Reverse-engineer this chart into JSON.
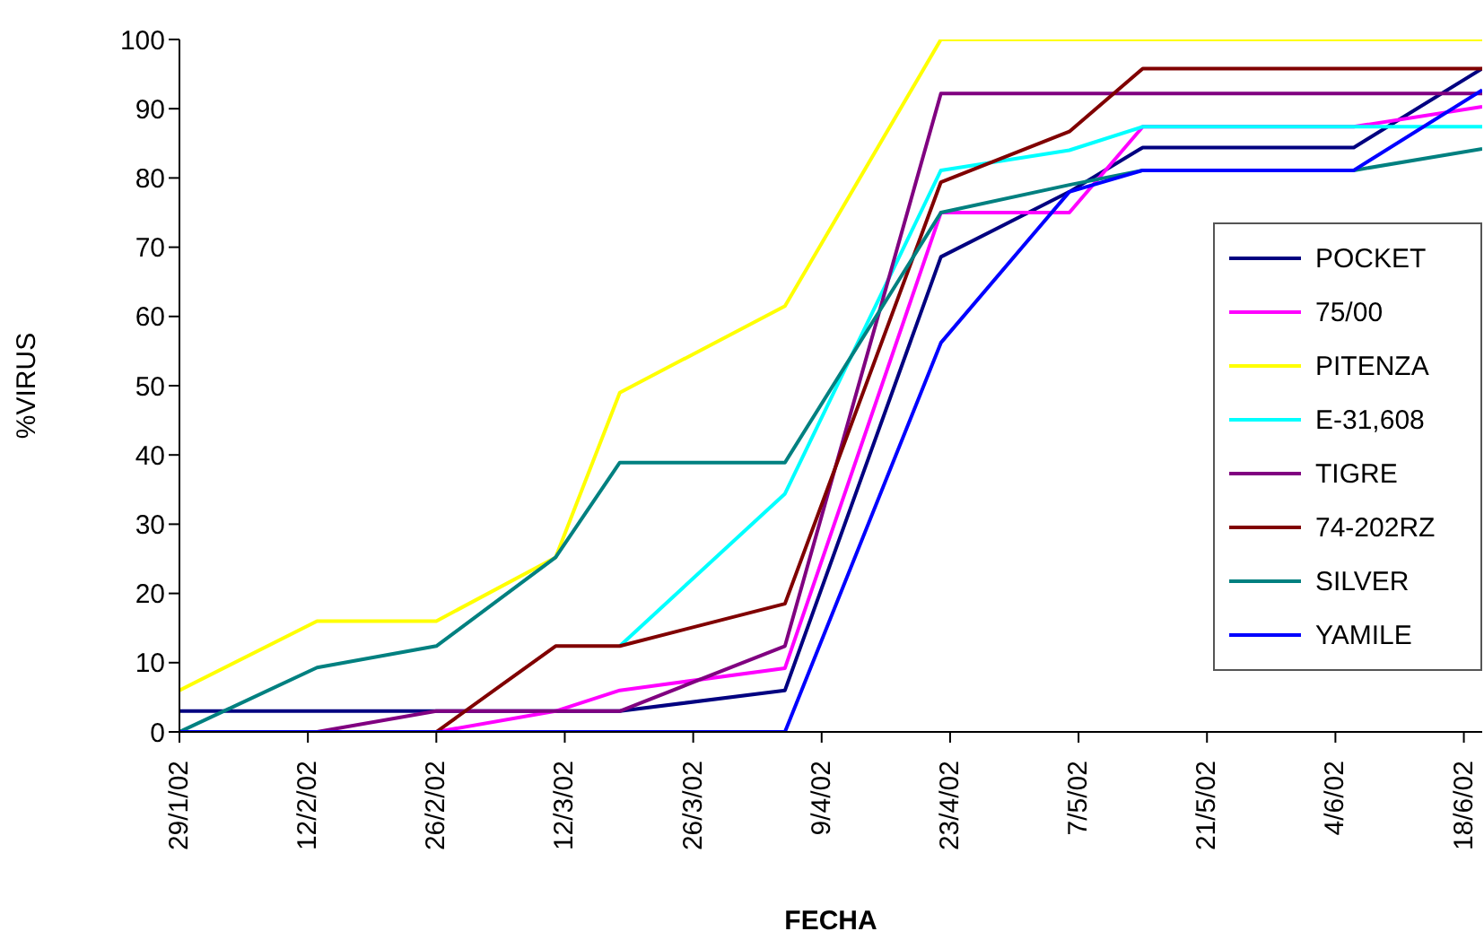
{
  "chart_data": {
    "type": "line",
    "xlabel": "FECHA",
    "ylabel": "%VIRUS",
    "x": [
      "2002-01-29",
      "2002-02-13",
      "2002-02-26",
      "2002-03-11",
      "2002-03-18",
      "2002-04-05",
      "2002-04-22",
      "2002-05-06",
      "2002-05-14",
      "2002-06-06",
      "2002-06-20"
    ],
    "xlim": [
      "2002-01-29",
      "2002-06-20"
    ],
    "xticks": [
      {
        "value": "2002-01-29",
        "label": "29/1/02"
      },
      {
        "value": "2002-02-12",
        "label": "12/2/02"
      },
      {
        "value": "2002-02-26",
        "label": "26/2/02"
      },
      {
        "value": "2002-03-12",
        "label": "12/3/02"
      },
      {
        "value": "2002-03-26",
        "label": "26/3/02"
      },
      {
        "value": "2002-04-09",
        "label": "9/4/02"
      },
      {
        "value": "2002-04-23",
        "label": "23/4/02"
      },
      {
        "value": "2002-05-07",
        "label": "7/5/02"
      },
      {
        "value": "2002-05-21",
        "label": "21/5/02"
      },
      {
        "value": "2002-06-04",
        "label": "4/6/02"
      },
      {
        "value": "2002-06-18",
        "label": "18/6/02"
      }
    ],
    "ylim": [
      0,
      100
    ],
    "yticks": [
      0,
      10,
      20,
      30,
      40,
      50,
      60,
      70,
      80,
      90,
      100
    ],
    "grid": false,
    "legend": "right",
    "marker": "none",
    "line_style": "solid",
    "series": [
      {
        "name": "POCKET",
        "color": "#000080",
        "values": [
          3,
          3,
          3,
          3,
          3,
          6,
          68.6,
          78,
          84.4,
          84.4,
          95.8
        ]
      },
      {
        "name": "75/00",
        "color": "#ff00ff",
        "values": [
          0,
          0,
          0,
          3,
          6,
          9.2,
          75,
          75,
          87.4,
          87.4,
          90.3
        ]
      },
      {
        "name": "PITENZA",
        "color": "#ffff00",
        "values": [
          6,
          16,
          16,
          25.2,
          49,
          61.5,
          100,
          100,
          100,
          100,
          100
        ]
      },
      {
        "name": "E-31,608",
        "color": "#00ffff",
        "values": [
          null,
          null,
          null,
          null,
          12.4,
          34.4,
          81.1,
          84,
          87.4,
          87.4,
          87.4
        ]
      },
      {
        "name": "TIGRE",
        "color": "#800080",
        "values": [
          0,
          0,
          3,
          3,
          3,
          12.4,
          92.2,
          92.2,
          92.2,
          92.2,
          92.2
        ]
      },
      {
        "name": "74-202RZ",
        "color": "#800000",
        "values": [
          0,
          0,
          0,
          12.4,
          12.4,
          18.5,
          79.4,
          86.7,
          95.8,
          95.8,
          95.8
        ]
      },
      {
        "name": "SILVER",
        "color": "#008080",
        "values": [
          0,
          9.3,
          12.4,
          25.2,
          38.9,
          38.9,
          75,
          79,
          81.1,
          81.1,
          84.2
        ]
      },
      {
        "name": "YAMILE",
        "color": "#0000ff",
        "values": [
          0,
          0,
          0,
          0,
          0,
          0,
          56.2,
          78,
          81.1,
          81.1,
          92.7
        ]
      }
    ]
  }
}
